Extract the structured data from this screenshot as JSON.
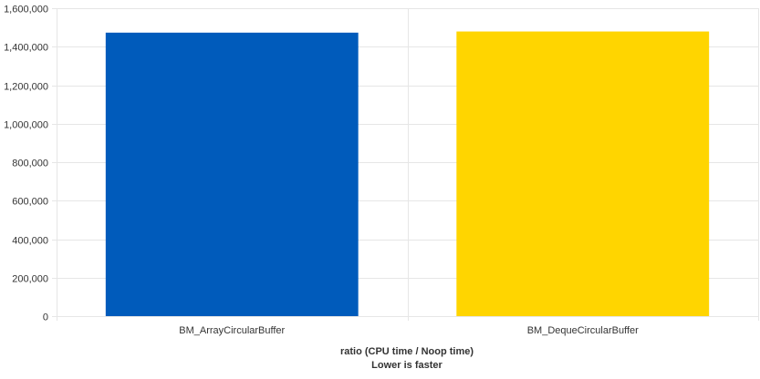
{
  "chart_data": {
    "type": "bar",
    "categories": [
      "BM_ArrayCircularBuffer",
      "BM_DequeCircularBuffer"
    ],
    "values": [
      1473000,
      1479000
    ],
    "colors": [
      "#005BBB",
      "#FFD500"
    ],
    "title": "",
    "xlabel": [
      "ratio (CPU time / Noop time)",
      "Lower is faster"
    ],
    "ylabel": "",
    "ylim": [
      0,
      1600000
    ],
    "yticks": [
      0,
      200000,
      400000,
      600000,
      800000,
      1000000,
      1200000,
      1400000,
      1600000
    ],
    "ytick_labels": [
      "0",
      "200,000",
      "400,000",
      "600,000",
      "800,000",
      "1,000,000",
      "1,200,000",
      "1,400,000",
      "1,600,000"
    ],
    "grid": true,
    "legend": "none"
  }
}
